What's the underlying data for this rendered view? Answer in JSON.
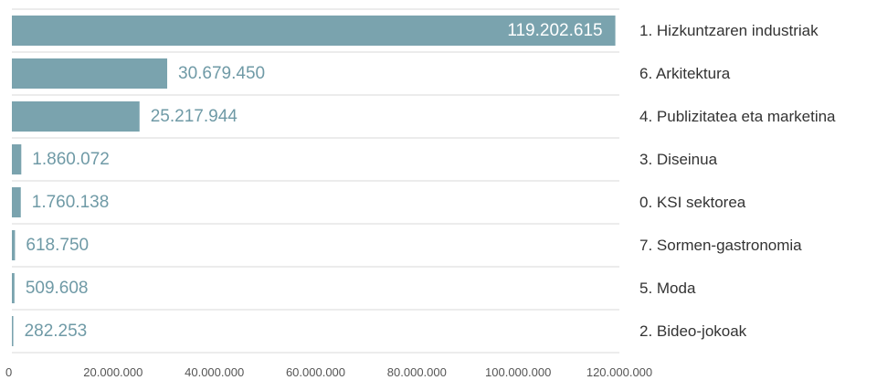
{
  "chart_data": {
    "type": "bar",
    "orientation": "horizontal",
    "categories": [
      "1. Hizkuntzaren industriak",
      "6. Arkitektura",
      "4. Publizitatea eta marketina",
      "3. Diseinua",
      "0. KSI sektorea",
      "7. Sormen-gastronomia",
      "5. Moda",
      "2. Bideo-jokoak"
    ],
    "values": [
      119202615,
      30679450,
      25217944,
      1860072,
      1760138,
      618750,
      509608,
      282253
    ],
    "value_labels": [
      "119.202.615",
      "30.679.450",
      "25.217.944",
      "1.860.072",
      "1.760.138",
      "618.750",
      "509.608",
      "282.253"
    ],
    "xlim": [
      0,
      120000000
    ],
    "x_ticks": [
      0,
      20000000,
      40000000,
      60000000,
      80000000,
      100000000,
      120000000
    ],
    "x_tick_labels": [
      "0",
      "20.000.000",
      "40.000.000",
      "60.000.000",
      "80.000.000",
      "100.000.000",
      "120.000.000"
    ],
    "title": "",
    "xlabel": "",
    "ylabel": "",
    "grid": "horizontal row separators",
    "legend": "none",
    "category_labels_position": "right",
    "colors": {
      "bar": "#7aa3ae",
      "label_outside": "#6f9aa6",
      "label_inside": "#ffffff",
      "category_text": "#333333",
      "tick_text": "#555555",
      "grid": "#d9d9d9"
    }
  }
}
